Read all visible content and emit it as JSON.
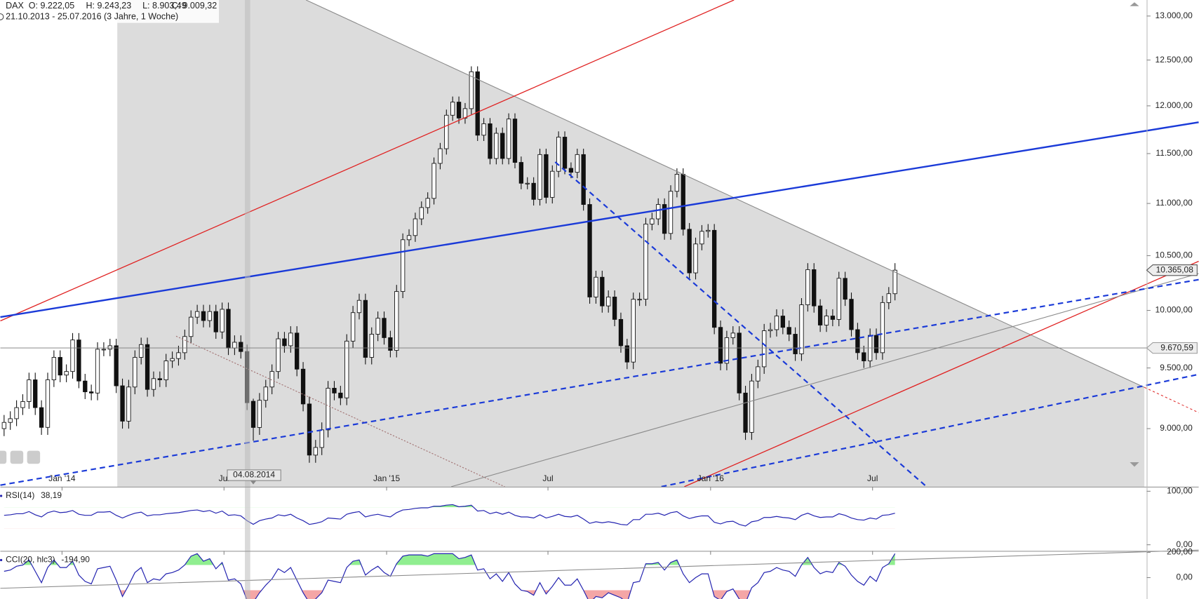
{
  "header": {
    "symbol": "DAX",
    "ohlc": [
      "O: 9.222,05",
      "H: 9.243,23",
      "L: 8.903,49",
      "C: 9.009,32"
    ],
    "range": "21.10.2013 - 25.07.2016 (3 Jahre, 1 Woche)"
  },
  "chart_data": [
    {
      "type": "candlestick",
      "log_scale": true,
      "ylim": [
        8546,
        13187
      ],
      "xlim": [
        -0.6,
        183.4
      ],
      "yticks": [
        {
          "value": 9000,
          "label": "9.000,00"
        },
        {
          "value": 9500,
          "label": "9.500,00"
        },
        {
          "value": 10000,
          "label": "10.000,00"
        },
        {
          "value": 10500,
          "label": "10.500,00"
        },
        {
          "value": 11000,
          "label": "11.000,00"
        },
        {
          "value": 11500,
          "label": "11.500,00"
        },
        {
          "value": 12000,
          "label": "12.000,00"
        },
        {
          "value": 12500,
          "label": "12.500,00"
        },
        {
          "value": 13000,
          "label": "13.000,00"
        }
      ],
      "xticks": [
        {
          "value": 9.3,
          "label": "Jan '14"
        },
        {
          "value": 35.3,
          "label": "Jul"
        },
        {
          "value": 61.4,
          "label": "Jan '15"
        },
        {
          "value": 87.3,
          "label": "Jul"
        },
        {
          "value": 113.4,
          "label": "Jan '16"
        },
        {
          "value": 139.4,
          "label": "Jul"
        }
      ],
      "up_color": "#ffffff",
      "down_color": "#111111",
      "last_value_label": "10.365,08",
      "crosshair": {
        "x": {
          "value": 40,
          "label": "04.08.2014"
        },
        "y": {
          "value": 9670.59,
          "label": "9.670,59"
        }
      },
      "open": [
        9000,
        9050,
        9080,
        9170,
        9220,
        9400,
        9170,
        9010,
        9400,
        9590,
        9440,
        9470,
        9740,
        9390,
        9300,
        9290,
        9660,
        9660,
        9690,
        9350,
        9060,
        9340,
        9590,
        9700,
        9320,
        9410,
        9400,
        9560,
        9580,
        9630,
        9770,
        9940,
        9990,
        9910,
        9990,
        9810,
        10010,
        9670,
        9720,
        9640,
        9222.05,
        9009.32,
        9230,
        9340,
        9470,
        9750,
        9690,
        9800,
        9490,
        9200,
        8790,
        8850,
        8990,
        9330,
        9290,
        9250,
        9730,
        9980,
        10090,
        9590,
        9790,
        9930,
        9760,
        9650,
        10170,
        10650,
        10690,
        10850,
        10960,
        11050,
        11400,
        11550,
        11900,
        12040,
        11870,
        11970,
        12370,
        11690,
        11810,
        11450,
        11710,
        11450,
        11860,
        11410,
        11200,
        11200,
        11040,
        11490,
        11060,
        11320,
        11670,
        11350,
        11310,
        11490,
        10990,
        10120,
        10300,
        10040,
        10120,
        9920,
        9690,
        9550,
        10100,
        10100,
        10800,
        10850,
        10990,
        10710,
        11120,
        11290,
        10750,
        10340,
        10610,
        10730,
        10740,
        9850,
        9540,
        9760,
        9800,
        9290,
        8970,
        9390,
        9510,
        9820,
        9830,
        9950,
        9850,
        9790,
        9620,
        10050,
        10370,
        10040,
        9870,
        9950,
        9920,
        10290,
        10100,
        9830,
        9630,
        9560,
        9780,
        9630,
        10070,
        10150
      ],
      "high": [
        9110,
        9140,
        9230,
        9280,
        9460,
        9460,
        9230,
        9460,
        9650,
        9650,
        9530,
        9800,
        9800,
        9450,
        9360,
        9720,
        9720,
        9750,
        9750,
        9410,
        9400,
        9650,
        9760,
        9760,
        9470,
        9470,
        9620,
        9640,
        9690,
        9830,
        10000,
        10050,
        10050,
        10050,
        10050,
        10070,
        10070,
        9780,
        9780,
        9700,
        9243.23,
        9290,
        9400,
        9530,
        9810,
        9810,
        9860,
        9860,
        9550,
        9260,
        8910,
        9050,
        9390,
        9390,
        9350,
        9790,
        10040,
        10150,
        10150,
        9850,
        9990,
        9990,
        9820,
        10230,
        10710,
        10750,
        10910,
        11020,
        11110,
        11460,
        11610,
        11960,
        12100,
        12100,
        12030,
        12430,
        12430,
        11870,
        11870,
        11770,
        11770,
        11920,
        11920,
        11470,
        11260,
        11260,
        11550,
        11550,
        11380,
        11730,
        11730,
        11410,
        11550,
        11550,
        11050,
        10360,
        10360,
        10180,
        10180,
        9980,
        9750,
        10160,
        10160,
        10860,
        10910,
        11050,
        11050,
        11180,
        11350,
        11350,
        10810,
        10670,
        10790,
        10800,
        10800,
        9910,
        9820,
        9860,
        9860,
        9350,
        9450,
        9570,
        9880,
        9890,
        10010,
        10010,
        9910,
        9850,
        10110,
        10430,
        10430,
        10100,
        10010,
        10010,
        10350,
        10350,
        10160,
        9890,
        9690,
        9840,
        9840,
        10130,
        10210,
        10430
      ],
      "low": [
        8940,
        8990,
        9020,
        9110,
        9160,
        9110,
        8950,
        8950,
        9340,
        9380,
        9380,
        9410,
        9330,
        9240,
        9230,
        9230,
        9600,
        9600,
        9290,
        9000,
        9000,
        9280,
        9530,
        9260,
        9260,
        9340,
        9340,
        9500,
        9520,
        9570,
        9710,
        9880,
        9850,
        9850,
        9750,
        9750,
        9610,
        9610,
        9580,
        9150,
        8903.49,
        8950,
        9170,
        9280,
        9410,
        9630,
        9630,
        9430,
        9140,
        8730,
        8730,
        8790,
        8930,
        9230,
        9190,
        9190,
        9670,
        9920,
        9530,
        9530,
        9730,
        9700,
        9590,
        9590,
        10110,
        10590,
        10630,
        10790,
        10900,
        10990,
        11340,
        11490,
        11840,
        11810,
        11810,
        11910,
        11630,
        11630,
        11390,
        11390,
        11390,
        11390,
        11350,
        11140,
        11140,
        10980,
        10980,
        11000,
        11000,
        11260,
        11290,
        11250,
        11250,
        10930,
        10060,
        10060,
        9980,
        9980,
        9860,
        9630,
        9490,
        9490,
        10040,
        10040,
        10740,
        10790,
        10650,
        10650,
        11060,
        10690,
        10280,
        10280,
        10550,
        10670,
        9790,
        9480,
        9480,
        9700,
        9230,
        8910,
        8910,
        9330,
        9450,
        9760,
        9770,
        9790,
        9730,
        9560,
        9560,
        9990,
        9980,
        9810,
        9810,
        9860,
        9860,
        10040,
        9770,
        9570,
        9500,
        9500,
        9570,
        9570,
        10010,
        10090
      ],
      "close": [
        9050,
        9080,
        9170,
        9220,
        9400,
        9170,
        9010,
        9400,
        9590,
        9440,
        9470,
        9740,
        9390,
        9300,
        9290,
        9660,
        9660,
        9690,
        9350,
        9060,
        9340,
        9590,
        9700,
        9320,
        9410,
        9400,
        9560,
        9580,
        9630,
        9770,
        9940,
        9990,
        9910,
        9990,
        9810,
        10010,
        9670,
        9720,
        9640,
        9210,
        9009.32,
        9230,
        9340,
        9470,
        9750,
        9690,
        9800,
        9490,
        9200,
        8790,
        8850,
        8990,
        9330,
        9290,
        9250,
        9730,
        9980,
        10090,
        9590,
        9790,
        9930,
        9760,
        9650,
        10170,
        10650,
        10690,
        10850,
        10960,
        11050,
        11400,
        11550,
        11900,
        12040,
        11870,
        11970,
        12370,
        11690,
        11810,
        11450,
        11710,
        11450,
        11860,
        11410,
        11200,
        11200,
        11040,
        11490,
        11060,
        11320,
        11670,
        11350,
        11310,
        11490,
        10990,
        10120,
        10300,
        10040,
        10120,
        9920,
        9690,
        9550,
        10100,
        10100,
        10800,
        10850,
        10990,
        10710,
        11120,
        11290,
        10750,
        10340,
        10610,
        10730,
        10740,
        9850,
        9540,
        9760,
        9800,
        9290,
        8970,
        9390,
        9510,
        9820,
        9830,
        9950,
        9850,
        9790,
        9620,
        10050,
        10370,
        10040,
        9870,
        9950,
        9920,
        10290,
        10100,
        9830,
        9630,
        9560,
        9780,
        9630,
        10070,
        10150,
        10365.08
      ]
    },
    {
      "type": "line",
      "ylim": [
        -10,
        107.1
      ],
      "yticks": [
        {
          "value": 0,
          "label": "0,00"
        },
        {
          "value": 100,
          "label": "100,00"
        }
      ],
      "overbought": 70,
      "oversold": 30,
      "up_fill": "#90ee90",
      "down_fill": "#f4a6a6",
      "series": [
        {
          "name": "RSI(14)",
          "value_label": "38,19",
          "color": "#2323b0",
          "values": [
            55,
            56,
            58,
            58,
            62,
            56,
            52,
            60,
            63,
            60,
            61,
            64,
            57,
            55,
            55,
            61,
            61,
            62,
            55,
            50,
            55,
            59,
            61,
            54,
            56,
            56,
            58,
            59,
            60,
            62,
            64,
            65,
            62,
            64,
            59,
            63,
            55,
            56,
            54,
            45,
            38.19,
            45,
            48,
            50,
            56,
            54,
            57,
            50,
            45,
            38,
            40,
            43,
            50,
            49,
            48,
            57,
            60,
            62,
            52,
            55,
            57,
            54,
            52,
            60,
            65,
            66,
            68,
            69,
            69,
            72,
            72,
            74,
            75,
            71,
            72,
            74,
            63,
            64,
            58,
            61,
            57,
            61,
            55,
            52,
            52,
            50,
            56,
            50,
            53,
            57,
            53,
            52,
            55,
            48,
            40,
            43,
            41,
            43,
            41,
            38,
            37,
            47,
            47,
            57,
            57,
            59,
            55,
            60,
            62,
            54,
            49,
            52,
            54,
            54,
            42,
            39,
            43,
            44,
            38,
            35,
            43,
            45,
            51,
            51,
            53,
            51,
            50,
            47,
            55,
            59,
            54,
            51,
            52,
            52,
            58,
            55,
            50,
            47,
            46,
            50,
            48,
            55,
            56,
            59
          ]
        }
      ]
    },
    {
      "type": "line",
      "ylim": [
        -169.7,
        206
      ],
      "yticks": [
        {
          "value": 0,
          "label": "0,00"
        },
        {
          "value": 200,
          "label": "200,00"
        }
      ],
      "overbought": 100,
      "oversold": -100,
      "up_fill": "#90ee90",
      "down_fill": "#f4a6a6",
      "series": [
        {
          "name": "CCI(20, hlc3)",
          "value_label": "-194,90",
          "color": "#2323b0",
          "values": [
            50,
            60,
            90,
            100,
            140,
            50,
            -40,
            80,
            140,
            80,
            80,
            130,
            20,
            -30,
            -50,
            70,
            80,
            90,
            -20,
            -150,
            -60,
            40,
            80,
            -40,
            -10,
            -20,
            30,
            40,
            60,
            100,
            170,
            190,
            130,
            150,
            70,
            120,
            -20,
            -10,
            -50,
            -180,
            -194.9,
            -120,
            -60,
            -10,
            70,
            40,
            80,
            -20,
            -120,
            -200,
            -170,
            -120,
            -20,
            -30,
            -40,
            80,
            130,
            140,
            20,
            60,
            90,
            40,
            10,
            110,
            170,
            180,
            180,
            180,
            170,
            190,
            190,
            190,
            190,
            150,
            160,
            180,
            60,
            70,
            -10,
            30,
            -30,
            40,
            -50,
            -100,
            -110,
            -140,
            -40,
            -130,
            -70,
            0,
            -60,
            -60,
            -10,
            -100,
            -200,
            -150,
            -160,
            -120,
            -140,
            -160,
            -200,
            -40,
            -30,
            110,
            110,
            120,
            60,
            120,
            140,
            30,
            -40,
            0,
            30,
            30,
            -150,
            -180,
            -110,
            -90,
            -170,
            -200,
            -80,
            -40,
            40,
            50,
            80,
            60,
            50,
            10,
            100,
            160,
            80,
            30,
            50,
            40,
            120,
            90,
            20,
            -30,
            -60,
            10,
            -30,
            80,
            110,
            190
          ]
        }
      ]
    }
  ]
}
